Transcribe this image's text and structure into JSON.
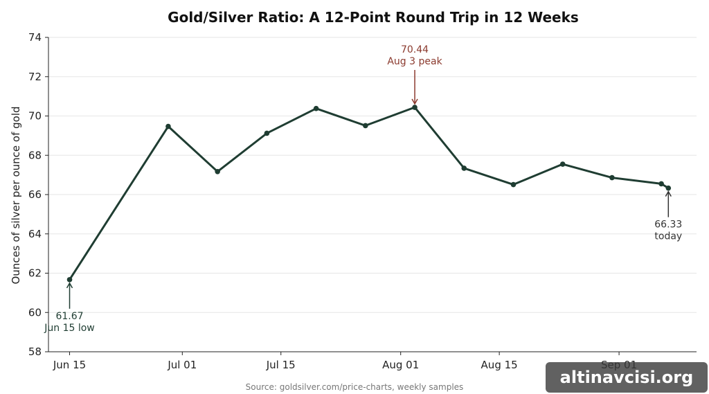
{
  "chart_data": {
    "type": "line",
    "title": "Gold/Silver Ratio: A 12-Point Round Trip in 12 Weeks",
    "ylabel": "Ounces of silver per ounce of gold",
    "xlabel": "",
    "source": "Source: goldsilver.com/price-charts, weekly samples",
    "xlim": [
      "2025-06-12",
      "2025-09-12"
    ],
    "ylim": [
      58,
      74
    ],
    "yticks": [
      58,
      60,
      62,
      64,
      66,
      68,
      70,
      72,
      74
    ],
    "xticks": [
      {
        "date": "2025-06-15",
        "label": "Jun 15"
      },
      {
        "date": "2025-07-01",
        "label": "Jul 01"
      },
      {
        "date": "2025-07-15",
        "label": "Jul 15"
      },
      {
        "date": "2025-08-01",
        "label": "Aug 01"
      },
      {
        "date": "2025-08-15",
        "label": "Aug 15"
      },
      {
        "date": "2025-09-01",
        "label": "Sep 01"
      }
    ],
    "grid": "horizontal",
    "line_color": "#1f3d32",
    "points": [
      {
        "x": "2025-06-15",
        "y": 61.67
      },
      {
        "x": "2025-06-29",
        "y": 69.47
      },
      {
        "x": "2025-07-06",
        "y": 67.17
      },
      {
        "x": "2025-07-13",
        "y": 69.12
      },
      {
        "x": "2025-07-20",
        "y": 70.38
      },
      {
        "x": "2025-07-27",
        "y": 69.51
      },
      {
        "x": "2025-08-03",
        "y": 70.44
      },
      {
        "x": "2025-08-10",
        "y": 67.34
      },
      {
        "x": "2025-08-17",
        "y": 66.51
      },
      {
        "x": "2025-08-24",
        "y": 67.55
      },
      {
        "x": "2025-08-31",
        "y": 66.86
      },
      {
        "x": "2025-09-07",
        "y": 66.55
      },
      {
        "x": "2025-09-08",
        "y": 66.33
      }
    ],
    "annotations": [
      {
        "x": "2025-06-15",
        "y": 61.67,
        "value": "61.67",
        "label": "Jun 15 low",
        "color": "#1f3d32"
      },
      {
        "x": "2025-08-03",
        "y": 70.44,
        "value": "70.44",
        "label": "Aug 3 peak",
        "color": "#8b3a2e"
      },
      {
        "x": "2025-09-08",
        "y": 66.33,
        "value": "66.33",
        "label": "today",
        "color": "#333333"
      }
    ]
  },
  "watermark": "altinavcisi.org"
}
